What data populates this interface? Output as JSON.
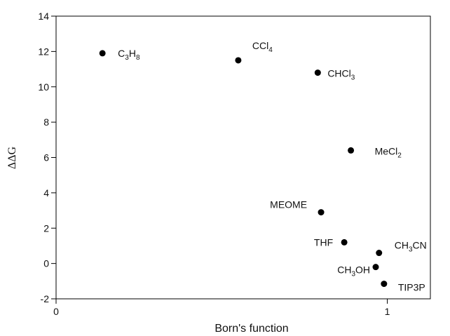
{
  "chart_data": {
    "type": "scatter",
    "title": "",
    "xlabel": "Born's function",
    "ylabel": "ΔΔG",
    "xlim": [
      0,
      1.13
    ],
    "ylim": [
      -2,
      14
    ],
    "xticks": [
      "0",
      "1"
    ],
    "yticks": [
      "-2",
      "0",
      "2",
      "4",
      "6",
      "8",
      "10",
      "12",
      "14"
    ],
    "grid": false,
    "legend": "none",
    "points": [
      {
        "label": "C3H8",
        "text": [
          {
            "t": "C",
            "sub": false
          },
          {
            "t": "3",
            "sub": true
          },
          {
            "t": "H",
            "sub": false
          },
          {
            "t": "8",
            "sub": true
          }
        ],
        "x": 0.14,
        "y": 11.9
      },
      {
        "label": "CCl4",
        "text": [
          {
            "t": "CCl",
            "sub": false
          },
          {
            "t": "4",
            "sub": true
          }
        ],
        "x": 0.55,
        "y": 11.5
      },
      {
        "label": "CHCl3",
        "text": [
          {
            "t": "CHCl",
            "sub": false
          },
          {
            "t": "3",
            "sub": true
          }
        ],
        "x": 0.79,
        "y": 10.8
      },
      {
        "label": "MeCl2",
        "text": [
          {
            "t": "MeCl",
            "sub": false
          },
          {
            "t": "2",
            "sub": true
          }
        ],
        "x": 0.89,
        "y": 6.4
      },
      {
        "label": "MEOME",
        "text": [
          {
            "t": "MEOME",
            "sub": false
          }
        ],
        "x": 0.8,
        "y": 2.9
      },
      {
        "label": "THF",
        "text": [
          {
            "t": "THF",
            "sub": false
          }
        ],
        "x": 0.87,
        "y": 1.2
      },
      {
        "label": "CH3CN",
        "text": [
          {
            "t": "CH",
            "sub": false
          },
          {
            "t": "3",
            "sub": true
          },
          {
            "t": "CN",
            "sub": false
          }
        ],
        "x": 0.975,
        "y": 0.6
      },
      {
        "label": "CH3OH",
        "text": [
          {
            "t": "CH",
            "sub": false
          },
          {
            "t": "3",
            "sub": true
          },
          {
            "t": "OH",
            "sub": false
          }
        ],
        "x": 0.965,
        "y": -0.2
      },
      {
        "label": "TIP3P",
        "text": [
          {
            "t": "TIP3P",
            "sub": false
          }
        ],
        "x": 0.99,
        "y": -1.15
      }
    ]
  }
}
